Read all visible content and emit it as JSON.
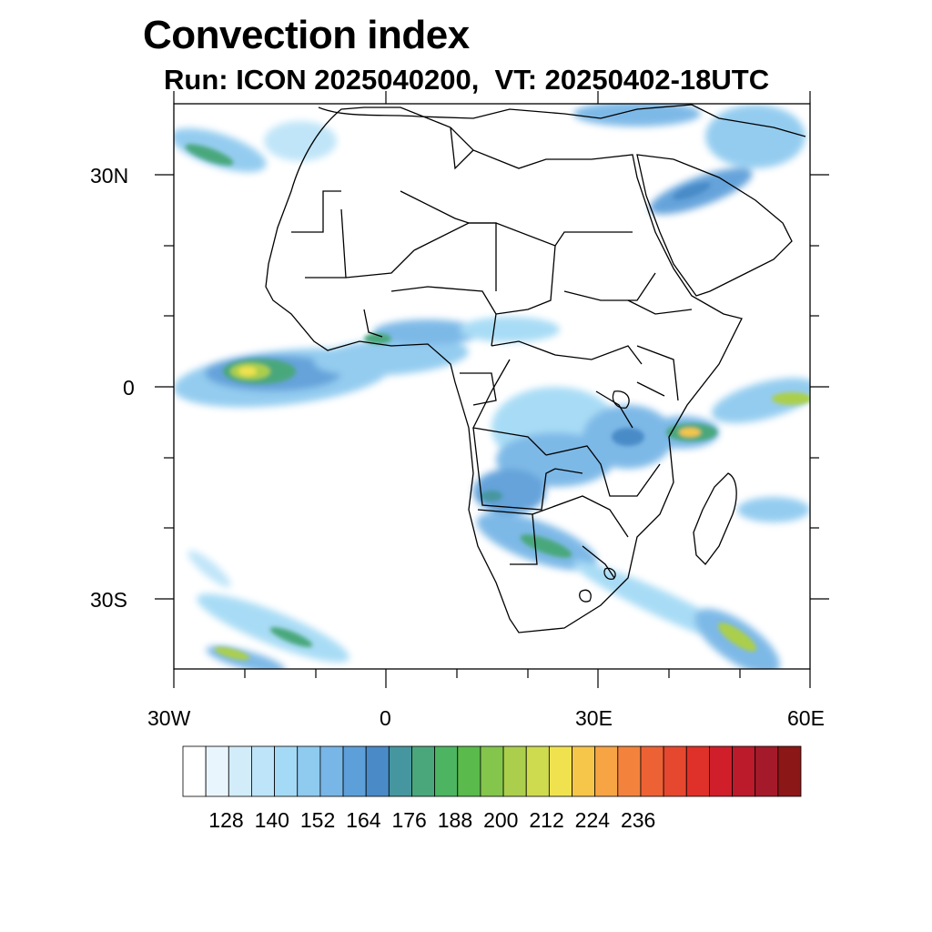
{
  "header": {
    "title": "Convection index",
    "subtitle": "Run: ICON 2025040200,  VT: 20250402-18UTC"
  },
  "axes": {
    "lat_labels": [
      "30N",
      "0",
      "30S"
    ],
    "lon_labels": [
      "30W",
      "0",
      "30E",
      "60E"
    ]
  },
  "colorbar": {
    "labels": [
      "128",
      "140",
      "152",
      "164",
      "176",
      "188",
      "200",
      "212",
      "224",
      "236"
    ],
    "colors": [
      "#ffffff",
      "#e9f5fc",
      "#d2ecfa",
      "#bde4f8",
      "#a4daf5",
      "#8fcaef",
      "#77b6e6",
      "#5d9fd9",
      "#4a8bc7",
      "#46969f",
      "#4aa77c",
      "#4db562",
      "#5aba4b",
      "#84c54b",
      "#abcf4c",
      "#cfdb4f",
      "#f0e24f",
      "#f6c64a",
      "#f7a444",
      "#f3823d",
      "#ed6235",
      "#e6482f",
      "#df3029",
      "#d01f2b",
      "#bb1b2b",
      "#a51a2a",
      "#8c1717"
    ]
  },
  "map": {
    "region": "Africa",
    "lon_range": [
      -30,
      60
    ],
    "lat_range": [
      -40,
      40
    ]
  }
}
